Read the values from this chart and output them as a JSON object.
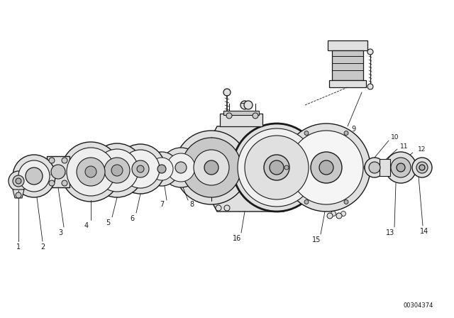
{
  "bg_color": "#ffffff",
  "line_color": "#1a1a1a",
  "label_color": "#1a1a1a",
  "watermark": "00304374",
  "fig_width": 6.4,
  "fig_height": 4.48,
  "dpi": 100,
  "lw": 0.8,
  "gray1": "#c8c8c8",
  "gray2": "#e0e0e0",
  "gray3": "#b0b0b0"
}
